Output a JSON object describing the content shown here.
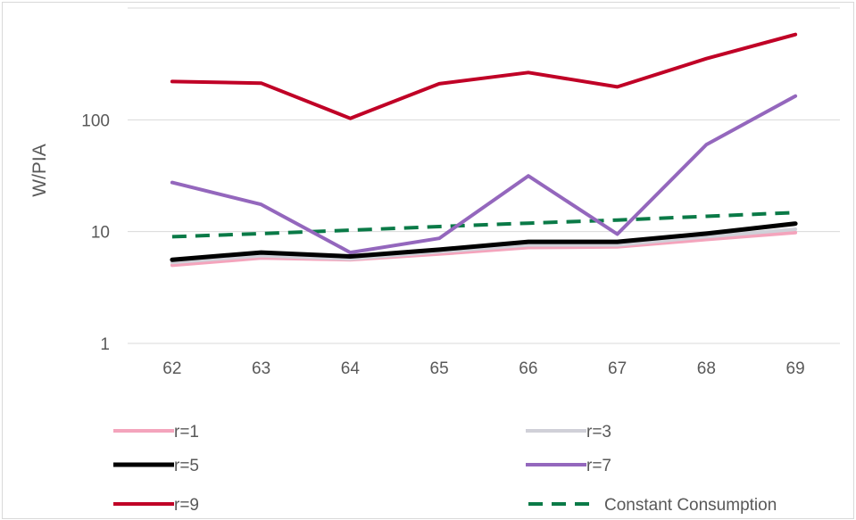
{
  "chart_data": {
    "type": "line",
    "title": "",
    "xlabel": "",
    "ylabel": "W/PIA",
    "yscale": "log",
    "ylim": [
      1,
      1000
    ],
    "yticks": [
      1,
      10,
      100
    ],
    "ytick_labels": [
      "1",
      "10",
      "100"
    ],
    "grid": "horizontal",
    "legend_position": "bottom",
    "categories": [
      "62",
      "63",
      "64",
      "65",
      "66",
      "67",
      "68",
      "69"
    ],
    "series": [
      {
        "name": "r=1",
        "color": "#f4a4bc",
        "dash": "solid",
        "width": 4,
        "values": [
          5.0,
          5.8,
          5.6,
          6.3,
          7.2,
          7.3,
          8.5,
          9.8
        ]
      },
      {
        "name": "r=3",
        "color": "#d0d0d8",
        "dash": "solid",
        "width": 4,
        "values": [
          5.3,
          6.1,
          5.7,
          6.6,
          7.6,
          7.6,
          9.0,
          10.5
        ]
      },
      {
        "name": "r=5",
        "color": "#000000",
        "dash": "solid",
        "width": 5,
        "values": [
          5.6,
          6.5,
          6.0,
          6.9,
          8.1,
          8.1,
          9.6,
          11.8
        ]
      },
      {
        "name": "r=7",
        "color": "#9467bd",
        "dash": "solid",
        "width": 4,
        "values": [
          27.5,
          17.5,
          6.5,
          8.7,
          31.5,
          9.5,
          60,
          163
        ]
      },
      {
        "name": "r=9",
        "color": "#c00026",
        "dash": "solid",
        "width": 4,
        "values": [
          220,
          213,
          103,
          210,
          265,
          197,
          353,
          580
        ]
      },
      {
        "name": "Constant Consumption",
        "color": "#0a7a47",
        "dash": "dashed",
        "width": 4,
        "values": [
          9.0,
          9.6,
          10.3,
          11.1,
          11.9,
          12.7,
          13.7,
          14.8
        ]
      }
    ]
  }
}
